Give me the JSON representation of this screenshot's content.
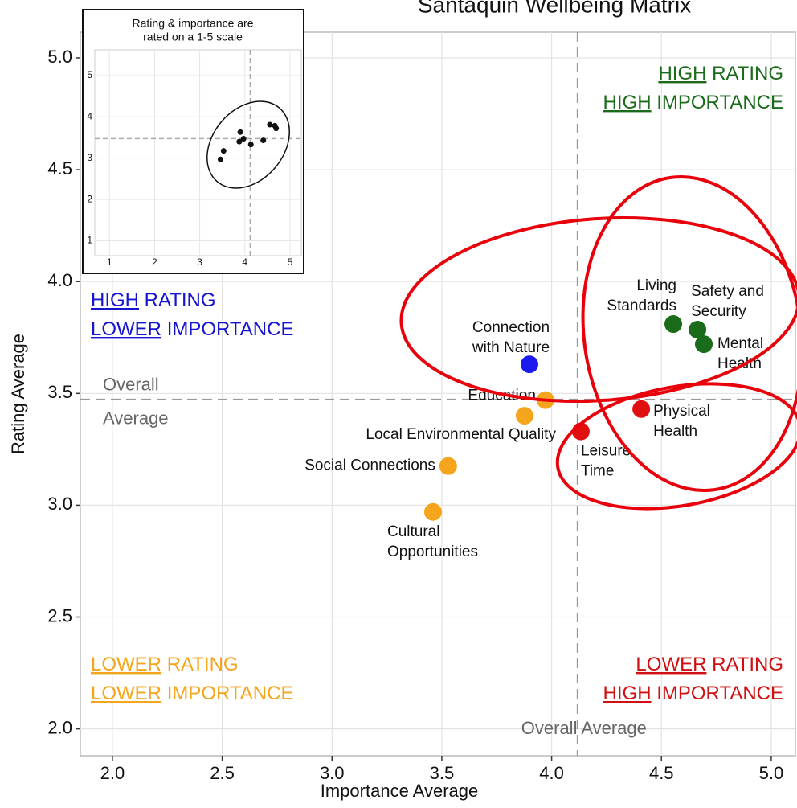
{
  "chart_data": {
    "type": "scatter",
    "title": "Santaquin Wellbeing Matrix",
    "xlabel": "Importance Average",
    "ylabel": "Rating Average",
    "xlim": [
      1.854,
      5.11
    ],
    "ylim": [
      1.88,
      5.115
    ],
    "xticks": [
      {
        "value": 2,
        "label": "2.0"
      },
      2.5,
      {
        "value": 3,
        "label": "3.0"
      },
      3.5,
      {
        "value": 4,
        "label": "4.0"
      },
      4.5,
      {
        "value": 5,
        "label": "5.0"
      }
    ],
    "yticks": [
      {
        "value": 2,
        "label": "2.0"
      },
      2.5,
      {
        "value": 3,
        "label": "3.0"
      },
      3.5,
      {
        "value": 4,
        "label": "4.0"
      },
      4.5,
      {
        "value": 5,
        "label": "5.0"
      }
    ],
    "grid": true,
    "series": [
      {
        "color": "#1a6b1a",
        "x": [
          4.554,
          4.664,
          4.693
        ],
        "values": [
          3.81,
          3.785,
          3.72
        ],
        "labels": [
          [
            "Living",
            "Standards"
          ],
          [
            "Safety and",
            "Security"
          ],
          [
            "Mental",
            "Health"
          ]
        ]
      },
      {
        "color": "#1a1aee",
        "x": [
          3.899
        ],
        "values": [
          3.63
        ],
        "labels": [
          [
            "Connection",
            "with Nature"
          ]
        ]
      },
      {
        "color": "#e01010",
        "x": [
          4.408,
          4.133
        ],
        "values": [
          3.43,
          3.33
        ],
        "labels": [
          [
            "Physical",
            "Health"
          ],
          [
            "Leisure",
            "Time"
          ]
        ]
      },
      {
        "color": "#f5a51c",
        "x": [
          3.972,
          3.877,
          3.529,
          3.46
        ],
        "values": [
          3.47,
          3.4,
          3.175,
          2.97
        ],
        "labels": [
          [
            "Education"
          ],
          [
            "Local Environmental Quality"
          ],
          [
            "Social Connections"
          ],
          [
            "Cultural",
            "Opportunities"
          ]
        ]
      }
    ],
    "reference_lines": {
      "x": {
        "value": 4.118,
        "label": [
          "Overall Average"
        ]
      },
      "y": {
        "value": 3.473,
        "label": [
          "Overall",
          "Average"
        ]
      }
    },
    "quadrants": [
      {
        "position": "top-right",
        "color": "#1a6b1a",
        "lines": [
          {
            "emphasis": "HIGH",
            "text": "RATING"
          },
          {
            "emphasis": "HIGH",
            "text": "IMPORTANCE"
          }
        ]
      },
      {
        "position": "top-left",
        "color": "#1515d0",
        "lines": [
          {
            "emphasis": "HIGH",
            "text": "RATING"
          },
          {
            "emphasis": "LOWER",
            "text": "IMPORTANCE"
          }
        ]
      },
      {
        "position": "bottom-left",
        "color": "#f5a51c",
        "lines": [
          {
            "emphasis": "LOWER",
            "text": "RATING"
          },
          {
            "emphasis": "LOWER",
            "text": "IMPORTANCE"
          }
        ]
      },
      {
        "position": "bottom-right",
        "color": "#d01010",
        "lines": [
          {
            "emphasis": "LOWER",
            "text": "RATING"
          },
          {
            "emphasis": "HIGH",
            "text": "IMPORTANCE"
          }
        ]
      }
    ],
    "inset": {
      "title": [
        "Rating & importance are",
        "rated on a 1-5 scale"
      ],
      "xlim": [
        0.676,
        5.25
      ],
      "ylim": [
        0.64,
        5.62
      ],
      "xticks": [
        1,
        2,
        3,
        4,
        5
      ],
      "yticks": [
        1,
        2,
        3,
        4,
        5
      ]
    }
  }
}
